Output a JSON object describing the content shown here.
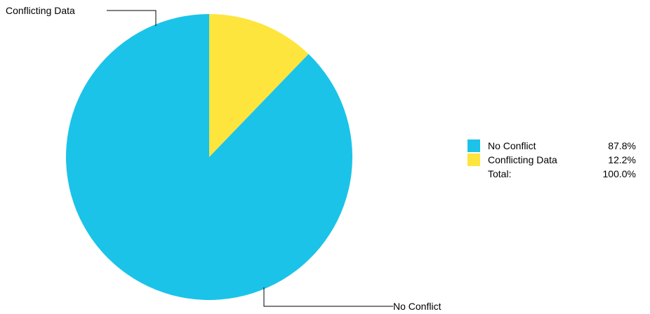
{
  "chart_data": {
    "type": "pie",
    "slices": [
      {
        "label": "No Conflict",
        "value": 87.8,
        "display": "87.8%",
        "color": "#1bc3e8"
      },
      {
        "label": "Conflicting Data",
        "value": 12.2,
        "display": "12.2%",
        "color": "#fde53e"
      }
    ],
    "total": {
      "label": "Total:",
      "display": "100.0%"
    },
    "legend_position": "right",
    "start_angle": "12 o'clock",
    "direction": "counter-clockwise"
  }
}
